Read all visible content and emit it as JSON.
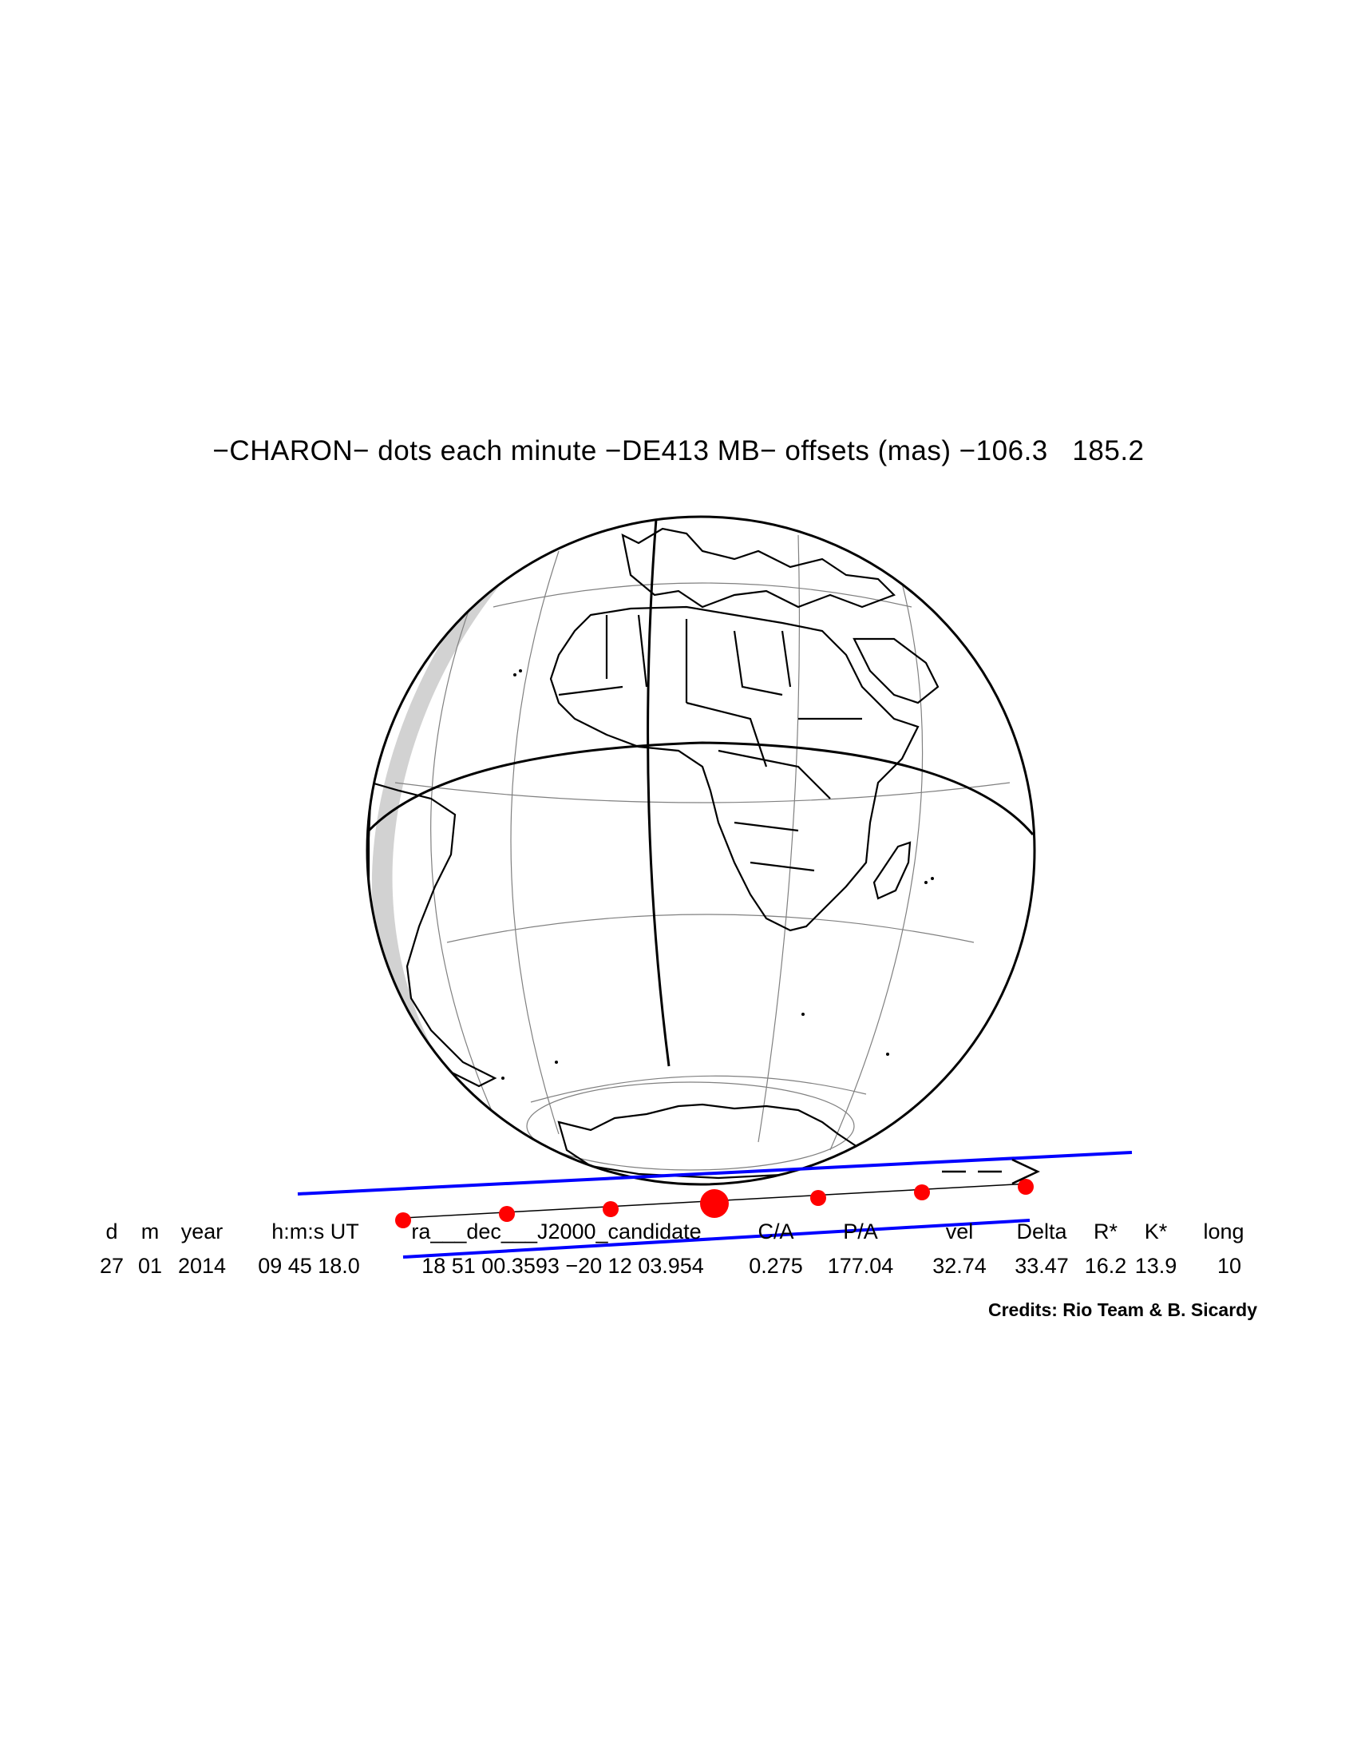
{
  "title": "−CHARON− dots each minute −DE413 MB− offsets (mas) −106.3   185.2",
  "header_labels": [
    "d",
    "m",
    "year",
    "h:m:s UT",
    "ra___dec___J2000_candidate",
    "C/A",
    "P/A",
    "vel",
    "Delta",
    "R*",
    "K*",
    "long"
  ],
  "values": [
    "27",
    "01",
    "2014",
    "09 45 18.0",
    "18 51 00.3593 −20 12 03.954",
    "0.275",
    "177.04",
    "32.74",
    "33.47",
    "16.2",
    "13.9",
    "10"
  ],
  "credits": "Credits: Rio Team & B. Sicardy",
  "colors": {
    "shadow_limits": "#0000ff",
    "dots": "#ff0000",
    "globe": "#000000",
    "night_shade": "#d0d0d0"
  },
  "icons": [
    "direction-arrow-icon"
  ]
}
